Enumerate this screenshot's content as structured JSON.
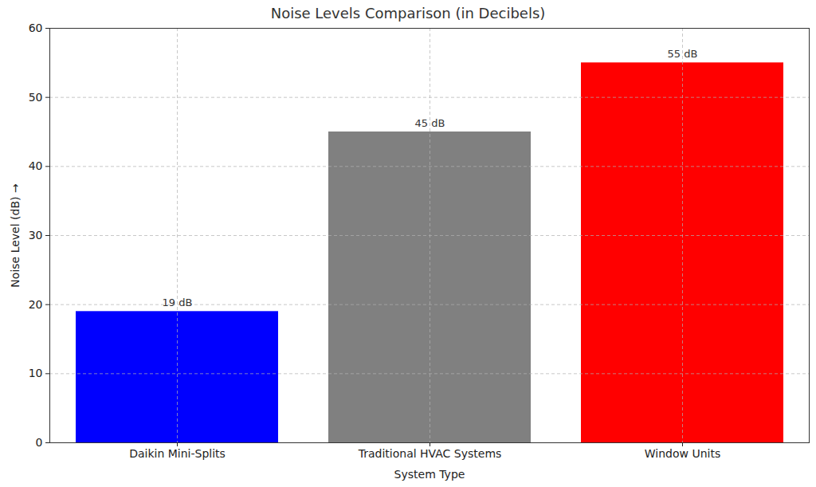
{
  "chart_data": {
    "type": "bar",
    "title": "Noise Levels Comparison (in Decibels)",
    "x_label": "System Type",
    "y_label": "Noise Level (dB)",
    "categories": [
      "Daikin Mini-Splits",
      "Traditional HVAC Systems",
      "Window Units"
    ],
    "values": [
      19,
      45,
      55
    ],
    "value_labels": [
      "19 dB",
      "45 dB",
      "55 dB"
    ],
    "colors": [
      "#0000ff",
      "#808080",
      "#ff0000"
    ],
    "ylim": [
      0,
      60
    ],
    "yticks": [
      0,
      10,
      20,
      30,
      40,
      50,
      60
    ],
    "grid": true,
    "data_labels": true
  }
}
